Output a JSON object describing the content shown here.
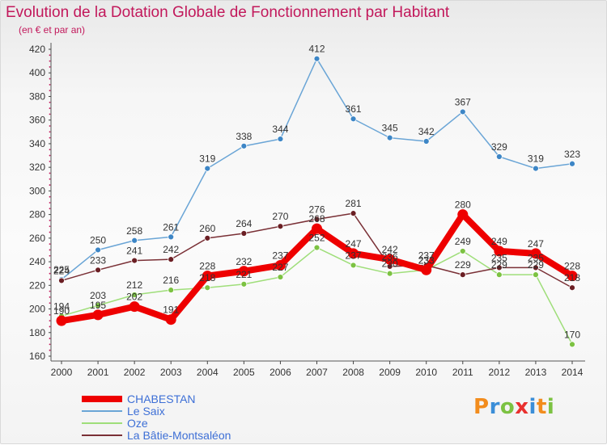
{
  "title": "Evolution de la Dotation Globale de Fonctionnement par Habitant",
  "subtitle": "(en € et par an)",
  "logo": {
    "text": "Proxiti",
    "colors": [
      "#f28c1d",
      "#3b8ed8",
      "#7cc242",
      "#e9302e",
      "#3b8ed8",
      "#f28c1d",
      "#7cc242"
    ]
  },
  "chart_data": {
    "type": "line",
    "title": "Evolution de la Dotation Globale de Fonctionnement par Habitant",
    "subtitle": "(en € et par an)",
    "xlabel": "",
    "ylabel": "",
    "x": [
      "2000",
      "2001",
      "2002",
      "2003",
      "2004",
      "2005",
      "2006",
      "2007",
      "2008",
      "2009",
      "2010",
      "2011",
      "2012",
      "2013",
      "2014"
    ],
    "yticks": [
      160,
      180,
      200,
      220,
      240,
      260,
      280,
      300,
      320,
      340,
      360,
      380,
      400,
      420
    ],
    "ylim": [
      160,
      420
    ],
    "grid": false,
    "legend_position": "bottom-left",
    "series": [
      {
        "name": "Le Saix",
        "color": "#6aa5d6",
        "marker": "#3d86c6",
        "values": [
          225,
          250,
          258,
          261,
          319,
          338,
          344,
          412,
          361,
          345,
          342,
          367,
          329,
          319,
          323
        ],
        "labels": [
          "225",
          "250",
          "258",
          "261",
          "319",
          "338",
          "344",
          "412",
          "361",
          "345",
          "342",
          "367",
          "329",
          "319",
          "323"
        ]
      },
      {
        "name": "Oze",
        "color": "#9fde7a",
        "marker": "#7cc242",
        "values": [
          194,
          203,
          212,
          216,
          218,
          221,
          227,
          252,
          237,
          230,
          233,
          249,
          229,
          229,
          170
        ],
        "labels": [
          "194",
          "203",
          "212",
          "216",
          "218",
          "221",
          "227",
          "252",
          "237",
          "230",
          "233",
          "249",
          "229",
          "229",
          "170"
        ]
      },
      {
        "name": "La Bâtie-Montsaléon",
        "color": "#7a3036",
        "marker": "#6b1f24",
        "values": [
          224,
          233,
          241,
          242,
          260,
          264,
          270,
          276,
          281,
          236,
          237,
          229,
          235,
          235,
          218
        ],
        "labels": [
          "224",
          "233",
          "241",
          "242",
          "260",
          "264",
          "270",
          "276",
          "281",
          "236",
          "237",
          "229",
          "235",
          "235",
          "218"
        ]
      },
      {
        "name": "CHABESTAN",
        "color": "#ee0000",
        "marker": "#ee0000",
        "values": [
          190,
          195,
          202,
          191,
          228,
          232,
          237,
          268,
          247,
          242,
          233,
          280,
          249,
          247,
          228
        ],
        "labels": [
          "190",
          "195",
          "202",
          "191",
          "228",
          "232",
          "237",
          "268",
          "247",
          "242",
          "233",
          "280",
          "249",
          "247",
          "228"
        ]
      }
    ],
    "legend_order": [
      "CHABESTAN",
      "Le Saix",
      "Oze",
      "La Bâtie-Montsaléon"
    ]
  }
}
